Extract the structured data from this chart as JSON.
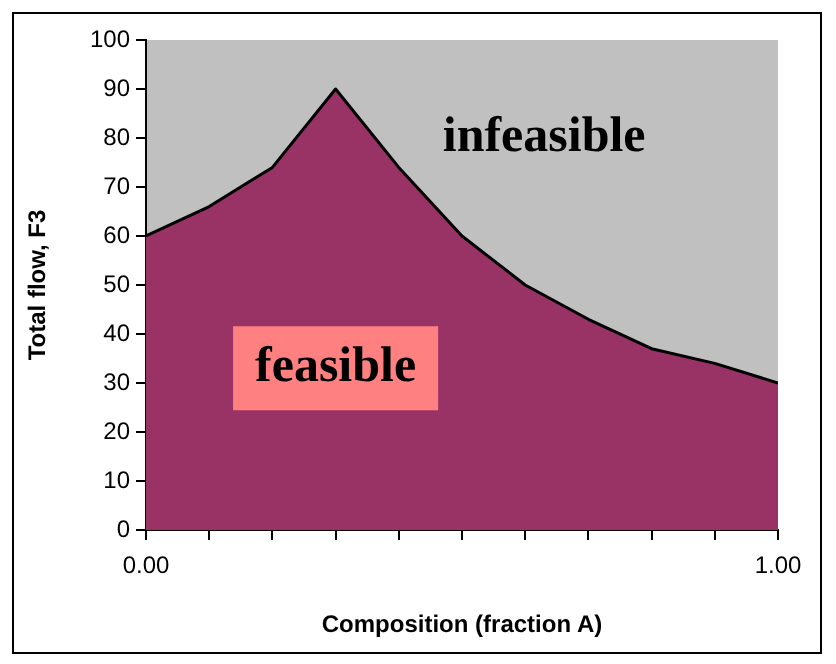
{
  "chart_data": {
    "type": "area",
    "xlabel": "Composition (fraction A)",
    "ylabel": "Total flow, F3",
    "x": [
      0,
      0.1,
      0.2,
      0.3,
      0.4,
      0.5,
      0.6,
      0.7,
      0.8,
      0.9,
      1.0
    ],
    "series": [
      {
        "color": "#993366",
        "values": [
          60,
          66,
          74,
          90,
          74,
          60,
          50,
          43,
          37,
          34,
          30
        ]
      }
    ],
    "xlim": [
      0,
      1
    ],
    "xticks": [
      {
        "value": 0,
        "label": "0.00"
      },
      {
        "value": 0.1,
        "label": null
      },
      {
        "value": 0.2,
        "label": null
      },
      {
        "value": 0.3,
        "label": null
      },
      {
        "value": 0.4,
        "label": null
      },
      {
        "value": 0.5,
        "label": null
      },
      {
        "value": 0.6,
        "label": null
      },
      {
        "value": 0.7,
        "label": null
      },
      {
        "value": 0.8,
        "label": null
      },
      {
        "value": 0.9,
        "label": null
      },
      {
        "value": 1,
        "label": "1.00"
      }
    ],
    "ylim": [
      0,
      100
    ],
    "yticks": [
      0,
      10,
      20,
      30,
      40,
      50,
      60,
      70,
      80,
      90,
      100
    ],
    "annotations": [
      "infeasible",
      "feasible"
    ],
    "grid": false,
    "legend": false
  }
}
